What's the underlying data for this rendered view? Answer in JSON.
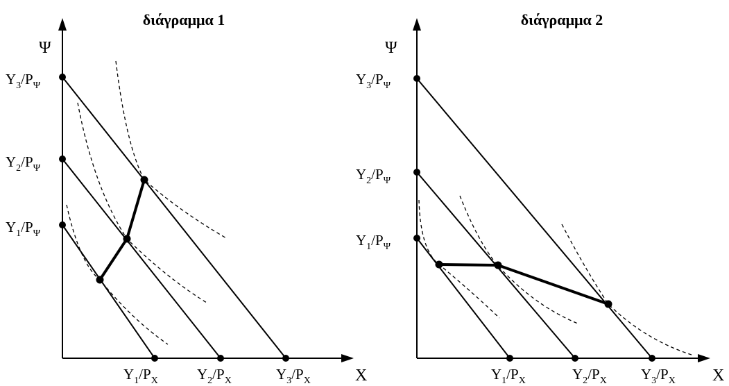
{
  "diagrams": [
    {
      "title": "διάγραμμα 1",
      "y_axis_label": "Ψ",
      "x_axis_label": "X",
      "y_intercepts": [
        {
          "main": "Y",
          "sub1": "3",
          "mid": "/P",
          "sub2": "Ψ"
        },
        {
          "main": "Y",
          "sub1": "2",
          "mid": "/P",
          "sub2": "Ψ"
        },
        {
          "main": "Y",
          "sub1": "1",
          "mid": "/P",
          "sub2": "Ψ"
        }
      ],
      "x_intercepts": [
        {
          "main": "Y",
          "sub1": "1",
          "mid": "/P",
          "sub2": "X"
        },
        {
          "main": "Y",
          "sub1": "2",
          "mid": "/P",
          "sub2": "X"
        },
        {
          "main": "Y",
          "sub1": "3",
          "mid": "/P",
          "sub2": "X"
        }
      ]
    },
    {
      "title": "διάγραμμα 2",
      "y_axis_label": "Ψ",
      "x_axis_label": "X",
      "y_intercepts": [
        {
          "main": "Y",
          "sub1": "3",
          "mid": "/P",
          "sub2": "Ψ"
        },
        {
          "main": "Y",
          "sub1": "2",
          "mid": "/P",
          "sub2": "Ψ"
        },
        {
          "main": "Y",
          "sub1": "1",
          "mid": "/P",
          "sub2": "Ψ"
        }
      ],
      "x_intercepts": [
        {
          "main": "Y",
          "sub1": "1",
          "mid": "/P",
          "sub2": "X"
        },
        {
          "main": "Y",
          "sub1": "2",
          "mid": "/P",
          "sub2": "X"
        },
        {
          "main": "Y",
          "sub1": "3",
          "mid": "/P",
          "sub2": "X"
        }
      ]
    }
  ]
}
